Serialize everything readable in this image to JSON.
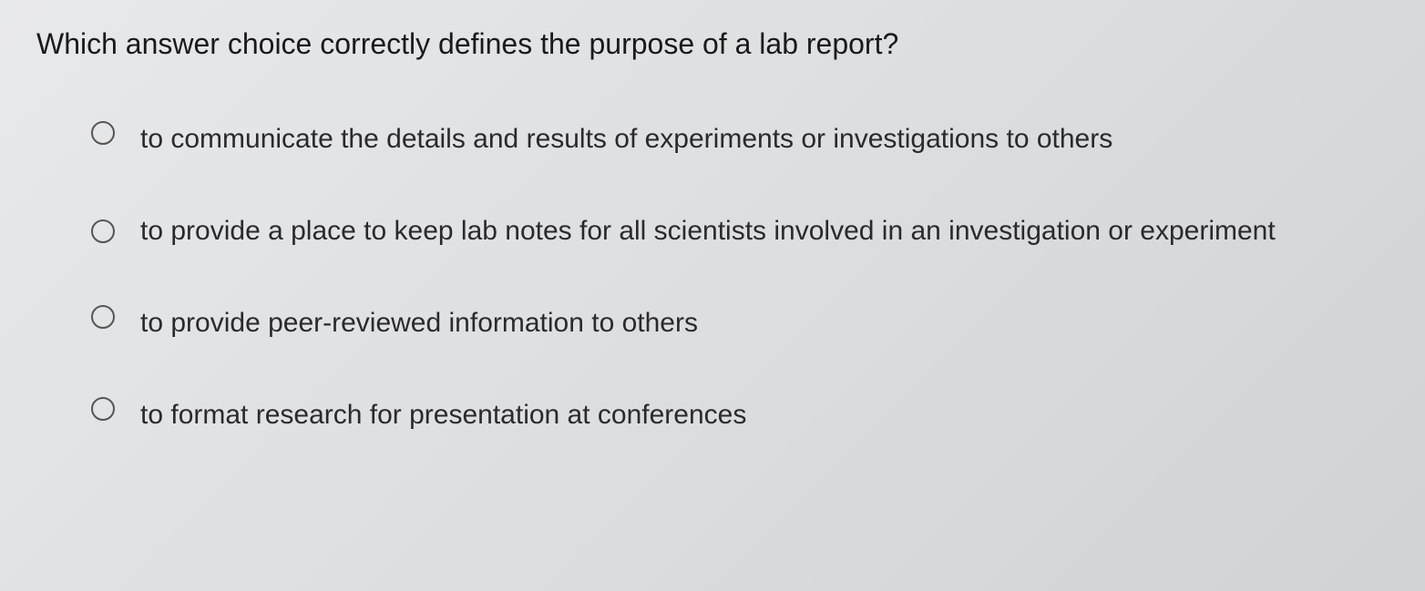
{
  "question": {
    "text": "Which answer choice correctly defines the purpose of a lab report?",
    "options": [
      {
        "label": "to communicate the details and results of experiments or investigations to others",
        "selected": false
      },
      {
        "label": "to provide a place to keep lab notes for all scientists involved in an investigation or experiment",
        "selected": false
      },
      {
        "label": "to provide peer-reviewed information to others",
        "selected": false
      },
      {
        "label": "to format research for presentation at conferences",
        "selected": false
      }
    ]
  },
  "styling": {
    "background_gradient_start": "#e8e9ea",
    "background_gradient_end": "#d0d2d4",
    "text_color": "#2a2a2a",
    "question_fontsize": 32,
    "option_fontsize": 30,
    "radio_border_color": "#555555",
    "radio_size": 26,
    "font_family": "Arial"
  }
}
